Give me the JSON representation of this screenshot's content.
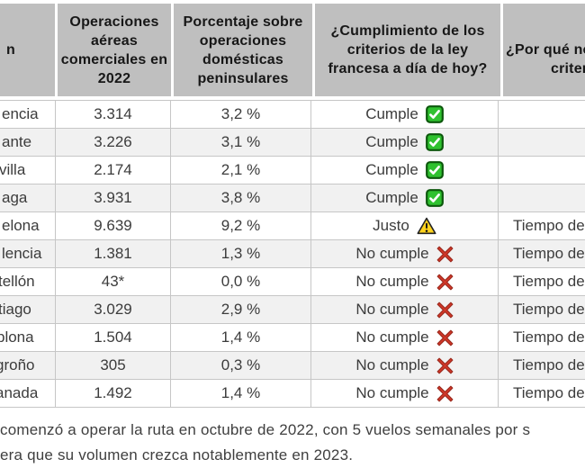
{
  "colors": {
    "header_bg": "#bfbfbf",
    "row_stripe_bg": "#f1f1f1",
    "grid_border": "#c6c6c6",
    "body_text": "#3c3c3c",
    "header_text": "#171717",
    "check_green": "#2fc12f",
    "check_border_green": "#0c570c",
    "warning_yellow": "#ffd21c",
    "cross_red": "#cf3728"
  },
  "chart_data": {
    "type": "table",
    "title": "",
    "columns": [
      {
        "id": "route",
        "header_visible": "n"
      },
      {
        "id": "operations_2022",
        "header": "Operaciones aéreas comerciales en 2022"
      },
      {
        "id": "pct_domestic",
        "header": "Porcentaje sobre operaciones domésticas peninsulares"
      },
      {
        "id": "french_law_compliance",
        "header": "¿Cumplimiento de los criterios de la ley francesa a día de hoy?"
      },
      {
        "id": "reason",
        "header_lines": [
          "¿Por qué no",
          "criterios"
        ]
      }
    ],
    "rows": [
      {
        "route": "encia",
        "operations": "3.314",
        "percentage": "3,2 %",
        "status": "Cumple",
        "status_icon": "check-icon",
        "reason": ""
      },
      {
        "route": "ante",
        "operations": "3.226",
        "percentage": "3,1 %",
        "status": "Cumple",
        "status_icon": "check-icon",
        "reason": ""
      },
      {
        "route": "villa",
        "operations": "2.174",
        "percentage": "2,1 %",
        "status": "Cumple",
        "status_icon": "check-icon",
        "reason": ""
      },
      {
        "route": "aga",
        "operations": "3.931",
        "percentage": "3,8 %",
        "status": "Cumple",
        "status_icon": "check-icon",
        "reason": ""
      },
      {
        "route": "elona",
        "operations": "9.639",
        "percentage": "9,2 %",
        "status": "Justo",
        "status_icon": "warning-icon",
        "reason": "Tiempo de"
      },
      {
        "route": "lencia",
        "operations": "1.381",
        "percentage": "1,3 %",
        "status": "No cumple",
        "status_icon": "cross-icon",
        "reason": "Tiempo de"
      },
      {
        "route": "tellón",
        "operations": "43*",
        "percentage": "0,0 %",
        "status": "No cumple",
        "status_icon": "cross-icon",
        "reason": "Tiempo de"
      },
      {
        "route": "tiago",
        "operations": "3.029",
        "percentage": "2,9 %",
        "status": "No cumple",
        "status_icon": "cross-icon",
        "reason": "Tiempo de"
      },
      {
        "route": "plona",
        "operations": "1.504",
        "percentage": "1,4 %",
        "status": "No cumple",
        "status_icon": "cross-icon",
        "reason": "Tiempo de"
      },
      {
        "route": "groño",
        "operations": "305",
        "percentage": "0,3 %",
        "status": "No cumple",
        "status_icon": "cross-icon",
        "reason": "Tiempo de"
      },
      {
        "route": "anada",
        "operations": "1.492",
        "percentage": "1,4 %",
        "status": "No cumple",
        "status_icon": "cross-icon",
        "reason": "Tiempo de"
      }
    ]
  },
  "footnote": {
    "lines": [
      "comenzó a operar la ruta en octubre de 2022, con 5 vuelos semanales por s",
      "era que su volumen crezca notablemente en 2023."
    ]
  }
}
